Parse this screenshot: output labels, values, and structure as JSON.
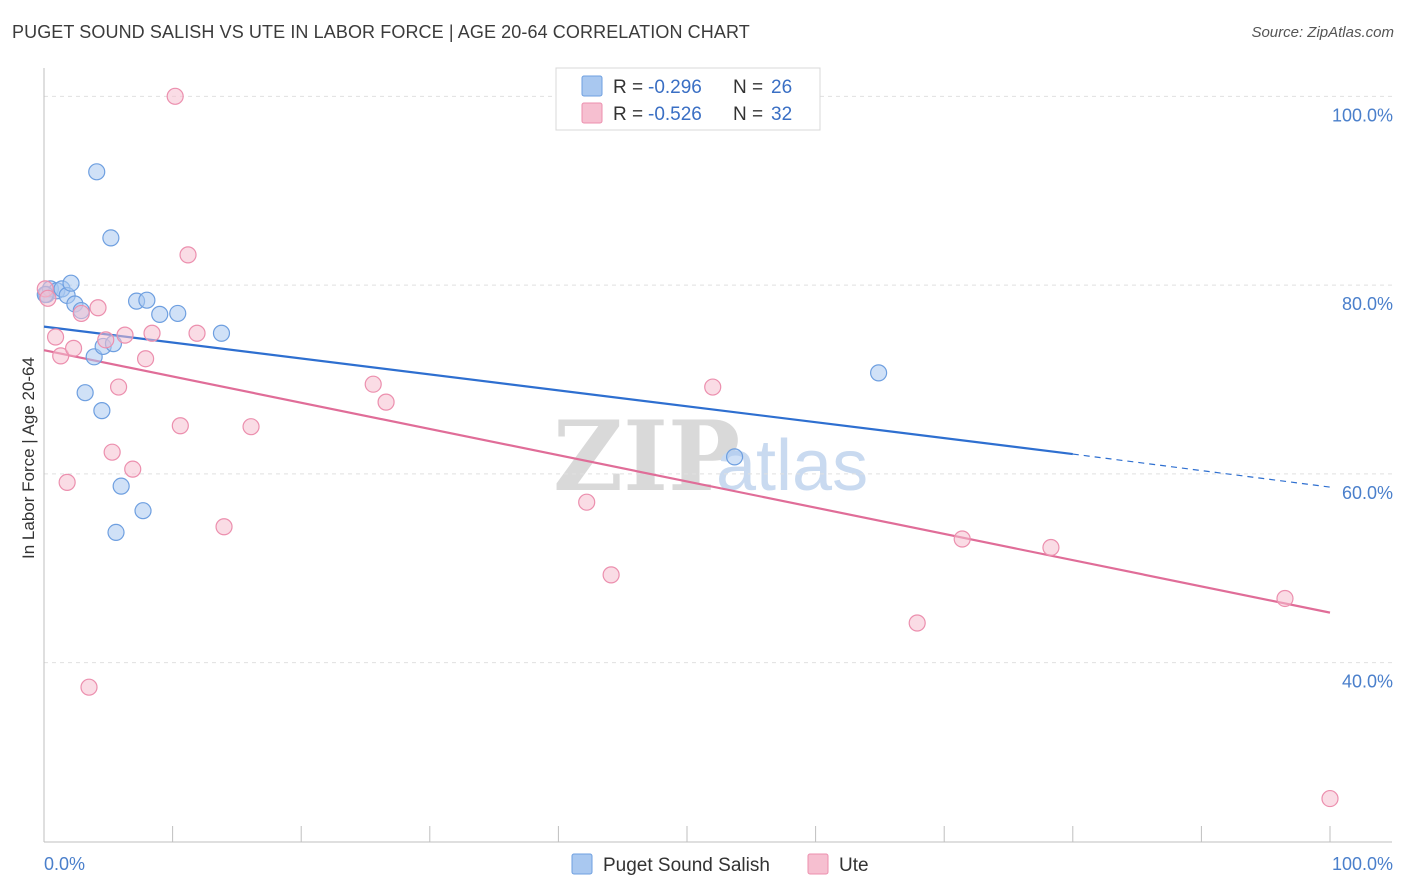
{
  "header": {
    "title": "PUGET SOUND SALISH VS UTE IN LABOR FORCE | AGE 20-64 CORRELATION CHART",
    "source": "Source: ZipAtlas.com"
  },
  "watermark": {
    "zip": "ZIP",
    "atlas": "atlas"
  },
  "colors": {
    "blue_fill": "#a9c8f0",
    "blue_stroke": "#6e9fe0",
    "blue_line": "#2e6fd0",
    "pink_fill": "#f6bfd0",
    "pink_stroke": "#ec8fae",
    "pink_line": "#e06d98",
    "grid": "#e0e0e0",
    "tick_text": "#4a7fcb"
  },
  "stats_box": {
    "rows": [
      {
        "r_label": "R =",
        "r_value": "-0.296",
        "n_label": "N =",
        "n_value": "26",
        "series": "blue"
      },
      {
        "r_label": "R =",
        "r_value": "-0.526",
        "n_label": "N =",
        "n_value": "32",
        "series": "pink"
      }
    ]
  },
  "chart_data": {
    "type": "scatter",
    "title": "PUGET SOUND SALISH VS UTE IN LABOR FORCE | AGE 20-64 CORRELATION CHART",
    "xlabel": "",
    "ylabel": "In Labor Force | Age 20-64",
    "xlim": [
      0,
      100
    ],
    "ylim": [
      21,
      103
    ],
    "x_tick_labels": [
      "0.0%",
      "100.0%"
    ],
    "y_ticks": [
      40,
      60,
      80,
      100
    ],
    "y_tick_labels": [
      "40.0%",
      "60.0%",
      "80.0%",
      "100.0%"
    ],
    "grid": "horizontal dashed",
    "legend_position": "bottom-center",
    "series": [
      {
        "name": "Puget Sound Salish",
        "color": "#a9c8f0",
        "points": [
          [
            0.2,
            79
          ],
          [
            0.5,
            79.6
          ],
          [
            1.0,
            79.4
          ],
          [
            1.4,
            79.6
          ],
          [
            1.8,
            78.9
          ],
          [
            2.1,
            80.2
          ],
          [
            2.4,
            78
          ],
          [
            2.9,
            77.3
          ],
          [
            3.2,
            68.6
          ],
          [
            3.9,
            72.4
          ],
          [
            4.1,
            92
          ],
          [
            4.5,
            66.7
          ],
          [
            4.6,
            73.5
          ],
          [
            5.2,
            85
          ],
          [
            5.4,
            73.8
          ],
          [
            5.6,
            53.8
          ],
          [
            6.0,
            58.7
          ],
          [
            7.2,
            78.3
          ],
          [
            7.7,
            56.1
          ],
          [
            8.0,
            78.4
          ],
          [
            9.0,
            76.9
          ],
          [
            10.4,
            77
          ],
          [
            13.8,
            74.9
          ],
          [
            53.7,
            61.8
          ],
          [
            64.9,
            70.7
          ],
          [
            0.1,
            79
          ]
        ]
      },
      {
        "name": "Ute",
        "color": "#f6bfd0",
        "points": [
          [
            0.1,
            79.6
          ],
          [
            0.9,
            74.5
          ],
          [
            1.3,
            72.5
          ],
          [
            1.8,
            59.1
          ],
          [
            2.3,
            73.3
          ],
          [
            2.9,
            77
          ],
          [
            3.5,
            37.4
          ],
          [
            4.2,
            77.6
          ],
          [
            4.8,
            74.2
          ],
          [
            5.3,
            62.3
          ],
          [
            5.8,
            69.2
          ],
          [
            6.3,
            74.7
          ],
          [
            6.9,
            60.5
          ],
          [
            7.9,
            72.2
          ],
          [
            8.4,
            74.9
          ],
          [
            10.2,
            100
          ],
          [
            10.6,
            65.1
          ],
          [
            11.2,
            83.2
          ],
          [
            11.9,
            74.9
          ],
          [
            14.0,
            54.4
          ],
          [
            16.1,
            65
          ],
          [
            25.6,
            69.5
          ],
          [
            26.6,
            67.6
          ],
          [
            42.2,
            57
          ],
          [
            44.1,
            49.3
          ],
          [
            52.0,
            69.2
          ],
          [
            67.9,
            44.2
          ],
          [
            71.4,
            53.1
          ],
          [
            78.3,
            52.2
          ],
          [
            96.5,
            46.8
          ],
          [
            100.0,
            25.6
          ],
          [
            0.3,
            78.6
          ]
        ]
      }
    ],
    "trend_lines": [
      {
        "series": "Puget Sound Salish",
        "x_start": 0,
        "y_start": 75.6,
        "x_solid_end": 80,
        "y_solid_end": 62.1,
        "x_end": 100,
        "y_end": 58.6
      },
      {
        "series": "Ute",
        "x_start": 0,
        "y_start": 73.1,
        "x_end": 100,
        "y_end": 45.3
      }
    ]
  },
  "legend": {
    "items": [
      {
        "label": "Puget Sound Salish",
        "series": "blue"
      },
      {
        "label": "Ute",
        "series": "pink"
      }
    ]
  }
}
